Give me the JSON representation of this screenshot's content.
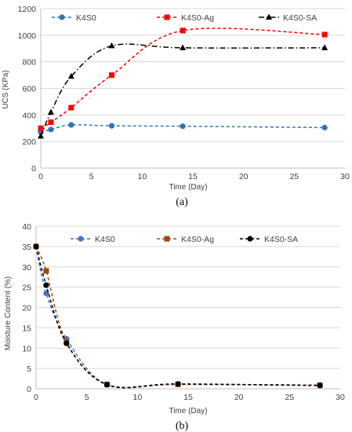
{
  "chart_data": [
    {
      "type": "line",
      "panel_label": "(a)",
      "xlabel": "Time (Day)",
      "ylabel": "UCS (KPa)",
      "xlim": [
        0,
        30
      ],
      "ylim": [
        0,
        1200
      ],
      "xticks": [
        0,
        5,
        10,
        15,
        20,
        25,
        30
      ],
      "yticks": [
        0,
        200,
        400,
        600,
        800,
        1000,
        1200
      ],
      "legend_position": "top",
      "series": [
        {
          "name": "K4S0",
          "color": "#2E75B6",
          "marker": "circle",
          "dash": "dashed",
          "x": [
            0,
            1,
            3,
            7,
            14,
            28
          ],
          "y": [
            270,
            290,
            325,
            318,
            315,
            305
          ]
        },
        {
          "name": "K4S0-Ag",
          "color": "#FF0000",
          "marker": "square",
          "dash": "dashed",
          "x": [
            0,
            1,
            3,
            7,
            14,
            28
          ],
          "y": [
            300,
            345,
            455,
            700,
            1035,
            1005
          ]
        },
        {
          "name": "K4S0-SA",
          "color": "#000000",
          "marker": "triangle",
          "dash": "dashdot",
          "x": [
            0,
            1,
            3,
            7,
            14,
            28
          ],
          "y": [
            240,
            420,
            690,
            920,
            905,
            905
          ]
        }
      ]
    },
    {
      "type": "line",
      "panel_label": "(b)",
      "xlabel": "Time (Day)",
      "ylabel": "Moisture Content (%)",
      "xlim": [
        0,
        30
      ],
      "ylim": [
        0,
        40
      ],
      "xticks": [
        0,
        5,
        10,
        15,
        20,
        25,
        30
      ],
      "yticks": [
        0,
        5,
        10,
        15,
        20,
        25,
        30,
        35,
        40
      ],
      "legend_position": "top",
      "series": [
        {
          "name": "K4S0",
          "color": "#4472C4",
          "marker": "circle",
          "dash": "dashed",
          "x": [
            0,
            1,
            3,
            7,
            14,
            28
          ],
          "y": [
            35,
            23.5,
            12.3,
            1.0,
            1.1,
            0.9
          ]
        },
        {
          "name": "K4S0-Ag",
          "color": "#9E480E",
          "marker": "square",
          "dash": "dashed",
          "x": [
            0,
            1,
            3,
            7,
            14,
            28
          ],
          "y": [
            35,
            29,
            11.5,
            1.1,
            1.1,
            0.9
          ]
        },
        {
          "name": "K4S0-SA",
          "color": "#000000",
          "marker": "circle",
          "dash": "dashed",
          "x": [
            0,
            1,
            3,
            7,
            14,
            28
          ],
          "y": [
            35,
            25.5,
            11.2,
            1.0,
            1.2,
            0.8
          ]
        }
      ]
    }
  ]
}
